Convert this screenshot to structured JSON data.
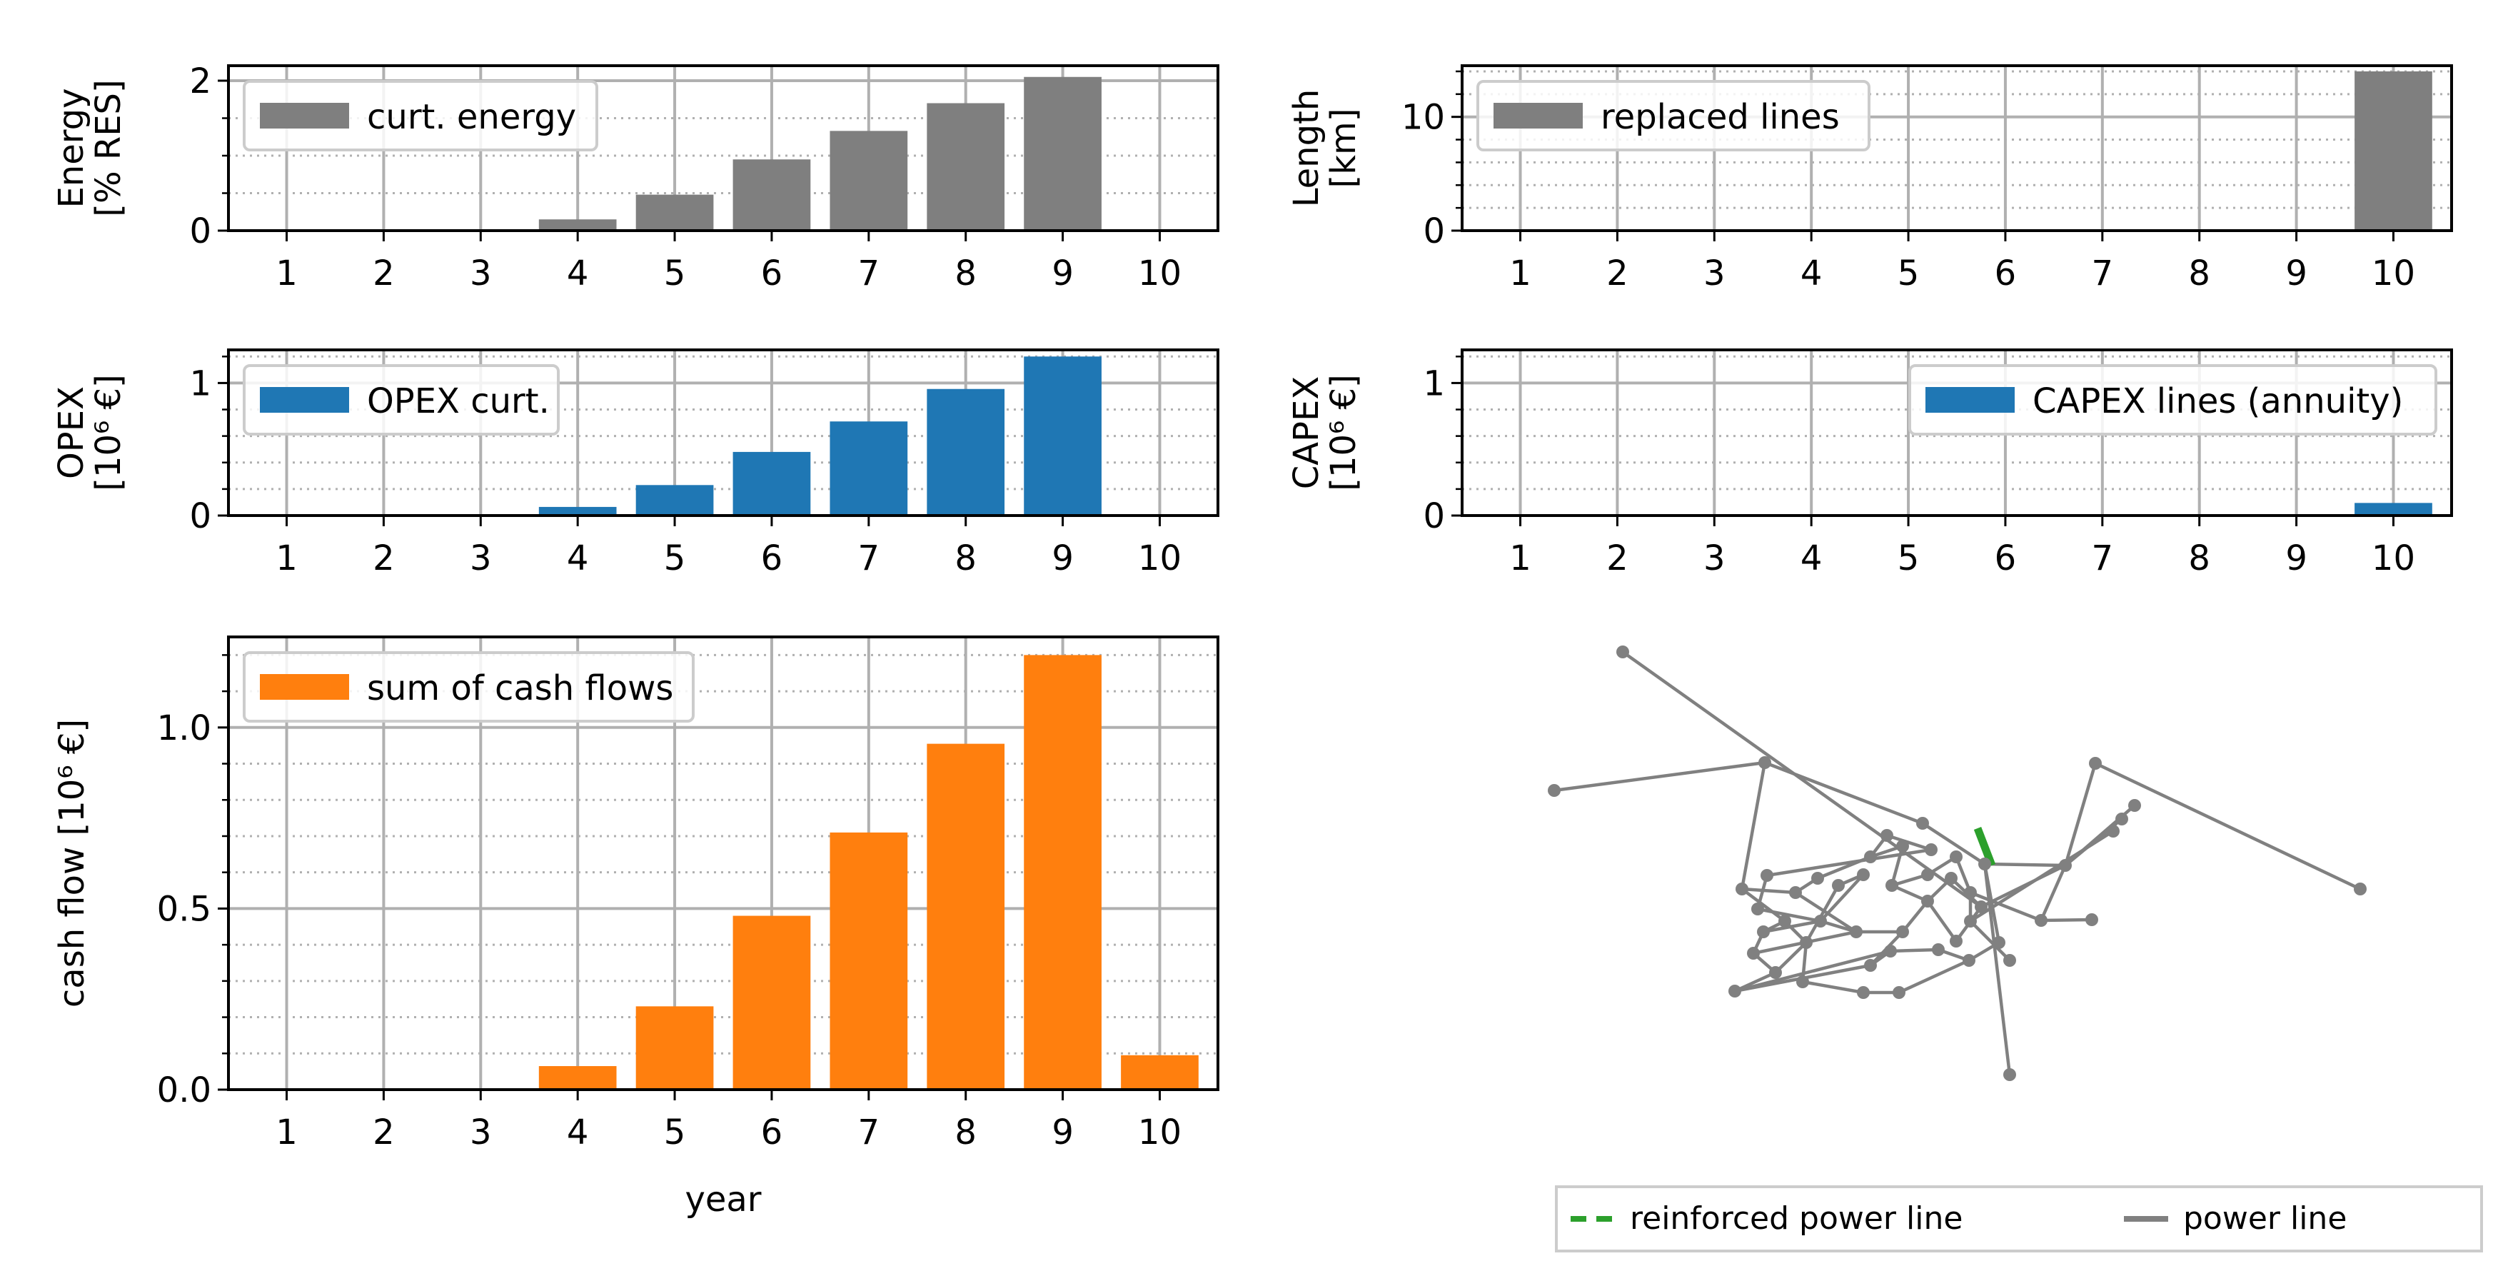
{
  "colors": {
    "gray_bar": "#7f7f7f",
    "blue_bar": "#1f77b4",
    "orange_bar": "#ff7f0e",
    "grid_major": "#b0b0b0",
    "grid_minor": "#b0b0b0",
    "network_line": "#808080",
    "reinforced_line": "#2ca02c"
  },
  "chart_data": [
    {
      "id": "energy",
      "type": "bar",
      "categories": [
        "1",
        "2",
        "3",
        "4",
        "5",
        "6",
        "7",
        "8",
        "9",
        "10"
      ],
      "values": [
        0,
        0,
        0,
        0.15,
        0.48,
        0.95,
        1.33,
        1.7,
        2.05,
        0
      ],
      "ylim": [
        0,
        2.2
      ],
      "yticks": [
        0,
        2
      ],
      "ytick_labels": [
        "0",
        "2"
      ],
      "minor_yticks": [
        0.5,
        1.0,
        1.5
      ],
      "ylabel": [
        "Energy",
        "[% RES]"
      ],
      "xlabel": "",
      "legend": "curt. energy",
      "legend_loc": "upper-left",
      "color": "gray_bar"
    },
    {
      "id": "length",
      "type": "bar",
      "categories": [
        "1",
        "2",
        "3",
        "4",
        "5",
        "6",
        "7",
        "8",
        "9",
        "10"
      ],
      "values": [
        0,
        0,
        0,
        0,
        0,
        0,
        0,
        0,
        0,
        14.0
      ],
      "ylim": [
        0,
        14.5
      ],
      "yticks": [
        0,
        10
      ],
      "ytick_labels": [
        "0",
        "10"
      ],
      "minor_yticks": [
        2,
        4,
        6,
        8,
        12,
        14
      ],
      "ylabel": [
        "Length",
        "[km]"
      ],
      "xlabel": "",
      "legend": "replaced lines",
      "legend_loc": "upper-left",
      "color": "gray_bar"
    },
    {
      "id": "opex",
      "type": "bar",
      "categories": [
        "1",
        "2",
        "3",
        "4",
        "5",
        "6",
        "7",
        "8",
        "9",
        "10"
      ],
      "values": [
        0,
        0,
        0,
        0.065,
        0.23,
        0.48,
        0.71,
        0.955,
        1.2,
        0
      ],
      "ylim": [
        0,
        1.25
      ],
      "yticks": [
        0,
        1
      ],
      "ytick_labels": [
        "0",
        "1"
      ],
      "minor_yticks": [
        0.2,
        0.4,
        0.6,
        0.8,
        1.2
      ],
      "ylabel": [
        "OPEX",
        "[10⁶ €]"
      ],
      "xlabel": "",
      "legend": "OPEX curt.",
      "legend_loc": "upper-left",
      "color": "blue_bar"
    },
    {
      "id": "capex",
      "type": "bar",
      "categories": [
        "1",
        "2",
        "3",
        "4",
        "5",
        "6",
        "7",
        "8",
        "9",
        "10"
      ],
      "values": [
        0,
        0,
        0,
        0,
        0,
        0,
        0,
        0,
        0,
        0.095
      ],
      "ylim": [
        0,
        1.25
      ],
      "yticks": [
        0,
        1
      ],
      "ytick_labels": [
        "0",
        "1"
      ],
      "minor_yticks": [
        0.2,
        0.4,
        0.6,
        0.8,
        1.2
      ],
      "ylabel": [
        "CAPEX",
        "[10⁶ €]"
      ],
      "xlabel": "",
      "legend": "CAPEX lines (annuity)",
      "legend_loc": "upper-right",
      "color": "blue_bar"
    },
    {
      "id": "cashflow",
      "type": "bar",
      "categories": [
        "1",
        "2",
        "3",
        "4",
        "5",
        "6",
        "7",
        "8",
        "9",
        "10"
      ],
      "values": [
        0,
        0,
        0,
        0.065,
        0.23,
        0.48,
        0.71,
        0.955,
        1.2,
        0.095
      ],
      "ylim": [
        0,
        1.25
      ],
      "yticks": [
        0,
        0.5,
        1.0
      ],
      "ytick_labels": [
        "0.0",
        "0.5",
        "1.0"
      ],
      "minor_yticks": [
        0.1,
        0.2,
        0.3,
        0.4,
        0.6,
        0.7,
        0.8,
        0.9,
        1.1,
        1.2
      ],
      "ylabel": [
        "cash flow [10⁶ €]"
      ],
      "xlabel": "year",
      "legend": "sum of cash flows",
      "legend_loc": "upper-left",
      "color": "orange_bar"
    }
  ],
  "network_legend": {
    "reinforced": "reinforced power line",
    "normal": "power line"
  }
}
